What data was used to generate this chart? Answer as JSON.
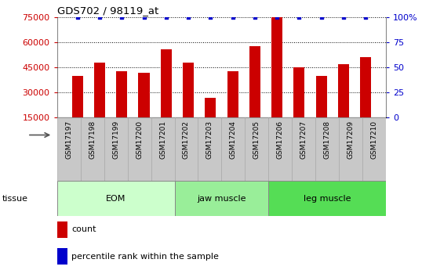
{
  "title": "GDS702 / 98119_at",
  "samples": [
    "GSM17197",
    "GSM17198",
    "GSM17199",
    "GSM17200",
    "GSM17201",
    "GSM17202",
    "GSM17203",
    "GSM17204",
    "GSM17205",
    "GSM17206",
    "GSM17207",
    "GSM17208",
    "GSM17209",
    "GSM17210"
  ],
  "counts": [
    40000,
    48000,
    43000,
    42000,
    56000,
    48000,
    27000,
    43000,
    58000,
    75000,
    45000,
    40000,
    47000,
    51000
  ],
  "percentiles": [
    100,
    100,
    100,
    100,
    100,
    100,
    100,
    100,
    100,
    100,
    100,
    100,
    100,
    100
  ],
  "bar_color": "#cc0000",
  "dot_color": "#0000cc",
  "ylim_left": [
    15000,
    75000
  ],
  "yticks_left": [
    15000,
    30000,
    45000,
    60000,
    75000
  ],
  "ylim_right": [
    0,
    100
  ],
  "yticks_right": [
    0,
    25,
    50,
    75,
    100
  ],
  "yticks_right_labels": [
    "0",
    "25",
    "50",
    "75",
    "100%"
  ],
  "groups": [
    {
      "label": "EOM",
      "start": 0,
      "end": 4,
      "color": "#ccffcc"
    },
    {
      "label": "jaw muscle",
      "start": 5,
      "end": 8,
      "color": "#99ee99"
    },
    {
      "label": "leg muscle",
      "start": 9,
      "end": 13,
      "color": "#55dd55"
    }
  ],
  "tissue_label": "tissue",
  "legend_count_label": "count",
  "legend_pct_label": "percentile rank within the sample",
  "tick_color_left": "#cc0000",
  "tick_color_right": "#0000cc",
  "bar_width": 0.5,
  "xticklabel_bg": "#c8c8c8"
}
